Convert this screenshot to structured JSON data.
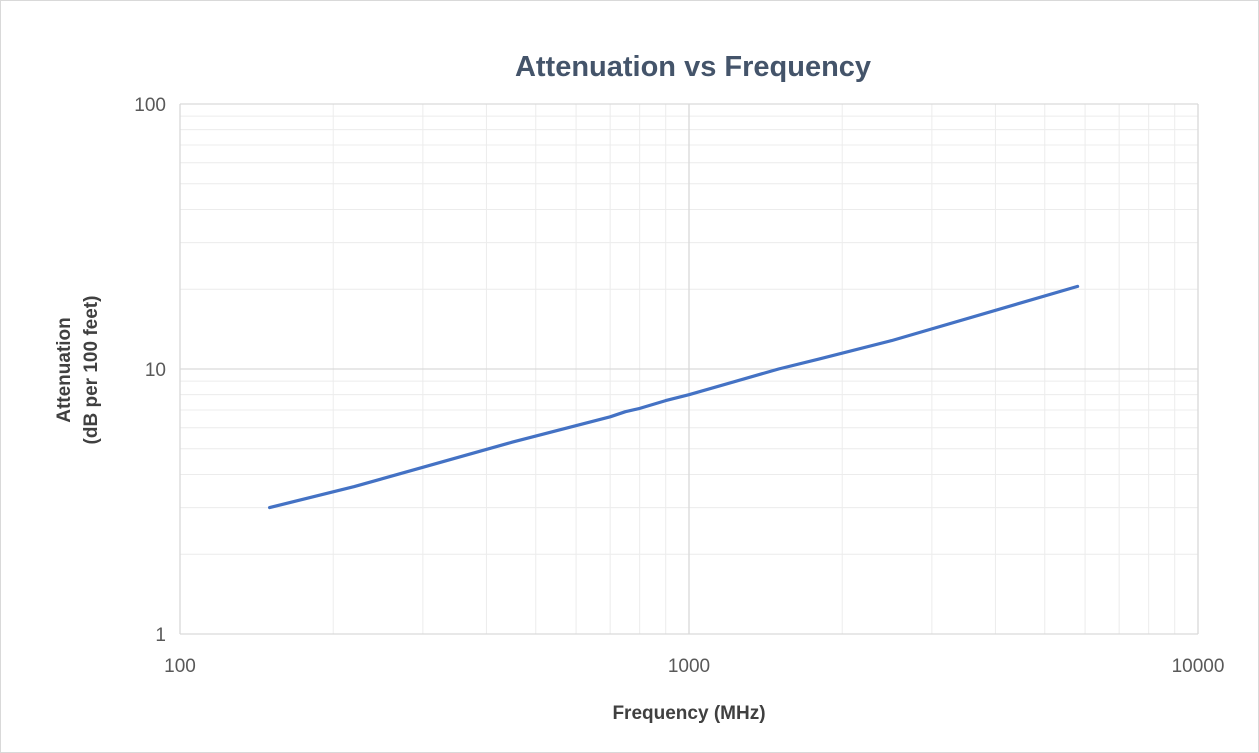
{
  "chart_data": {
    "type": "line",
    "title": "Attenuation vs Frequency",
    "xlabel": "Frequency (MHz)",
    "ylabel_lines": [
      "Attenuation",
      "(dB per 100 feet)"
    ],
    "x_scale": "log",
    "y_scale": "log",
    "xlim": [
      100,
      10000
    ],
    "ylim": [
      1,
      100
    ],
    "x_ticks": [
      100,
      1000,
      10000
    ],
    "y_ticks": [
      1,
      10,
      100
    ],
    "x_tick_labels": [
      "100",
      "1000",
      "10000"
    ],
    "y_tick_labels": [
      "1",
      "10",
      "100"
    ],
    "grid": true,
    "legend": "none",
    "series": [
      {
        "color": "#4472c4",
        "x": [
          150,
          220,
          450,
          700,
          750,
          800,
          900,
          1000,
          1500,
          1800,
          2500,
          5800
        ],
        "y": [
          3.0,
          3.6,
          5.3,
          6.6,
          6.9,
          7.1,
          7.6,
          8.0,
          10.0,
          10.9,
          12.8,
          20.5
        ]
      }
    ]
  }
}
